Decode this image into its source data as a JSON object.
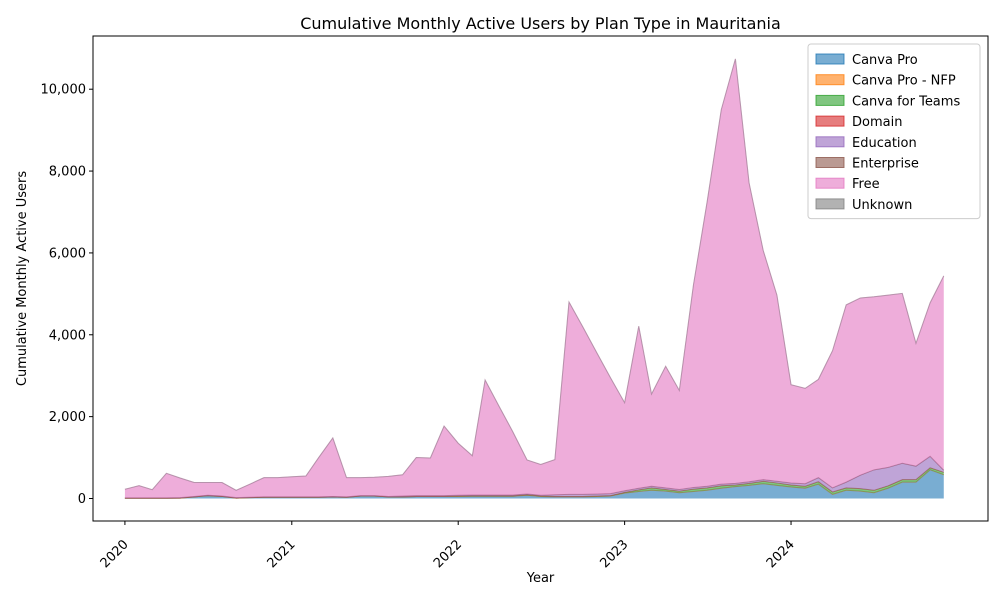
{
  "chart_data": {
    "type": "area",
    "title": "Cumulative Monthly Active Users by Plan Type in Mauritania",
    "xlabel": "Year",
    "ylabel": "Cumulative Monthly Active Users",
    "ylim": [
      -550,
      11300
    ],
    "xlim": [
      "2019-10-23",
      "2025-03-08"
    ],
    "x_ticks": [
      "2020",
      "2021",
      "2022",
      "2023",
      "2024"
    ],
    "y_ticks": [
      "0",
      "2,000",
      "4,000",
      "6,000",
      "8,000",
      "10,000"
    ],
    "legend_position": "top-right",
    "stacked": true,
    "x": [
      "2020-01",
      "2020-02",
      "2020-03",
      "2020-04",
      "2020-05",
      "2020-06",
      "2020-07",
      "2020-08",
      "2020-09",
      "2020-10",
      "2020-11",
      "2020-12",
      "2021-01",
      "2021-02",
      "2021-03",
      "2021-04",
      "2021-05",
      "2021-06",
      "2021-07",
      "2021-08",
      "2021-09",
      "2021-10",
      "2021-11",
      "2021-12",
      "2022-01",
      "2022-02",
      "2022-03",
      "2022-04",
      "2022-05",
      "2022-06",
      "2022-07",
      "2022-08",
      "2022-09",
      "2022-10",
      "2022-11",
      "2022-12",
      "2023-01",
      "2023-02",
      "2023-03",
      "2023-04",
      "2023-05",
      "2023-06",
      "2023-07",
      "2023-08",
      "2023-09",
      "2023-10",
      "2023-11",
      "2023-12",
      "2024-01",
      "2024-02",
      "2024-03",
      "2024-04",
      "2024-05",
      "2024-06",
      "2024-07",
      "2024-08",
      "2024-09",
      "2024-10",
      "2024-11",
      "2024-12"
    ],
    "series": [
      {
        "name": "Canva Pro",
        "color": "#1f77b4",
        "values": [
          5,
          5,
          5,
          5,
          10,
          40,
          70,
          50,
          10,
          20,
          30,
          30,
          30,
          30,
          30,
          40,
          30,
          60,
          60,
          40,
          40,
          50,
          50,
          50,
          50,
          55,
          55,
          55,
          55,
          80,
          50,
          40,
          40,
          40,
          50,
          60,
          130,
          170,
          200,
          180,
          140,
          170,
          200,
          250,
          290,
          320,
          360,
          320,
          280,
          250,
          350,
          100,
          200,
          180,
          140,
          250,
          400,
          400,
          700,
          580
        ]
      },
      {
        "name": "Canva Pro - NFP",
        "color": "#ff7f0e",
        "values": [
          0,
          0,
          0,
          0,
          0,
          0,
          0,
          0,
          0,
          0,
          0,
          0,
          0,
          0,
          0,
          0,
          0,
          0,
          0,
          0,
          0,
          0,
          0,
          0,
          0,
          0,
          0,
          0,
          0,
          0,
          0,
          0,
          0,
          0,
          0,
          0,
          0,
          0,
          0,
          0,
          0,
          0,
          0,
          0,
          0,
          0,
          0,
          0,
          0,
          0,
          0,
          0,
          0,
          0,
          0,
          0,
          0,
          0,
          0,
          0
        ]
      },
      {
        "name": "Canva for Teams",
        "color": "#2ca02c",
        "values": [
          0,
          0,
          0,
          0,
          0,
          0,
          0,
          0,
          0,
          0,
          0,
          0,
          0,
          0,
          0,
          0,
          0,
          0,
          0,
          0,
          0,
          0,
          0,
          0,
          10,
          10,
          10,
          10,
          10,
          10,
          10,
          10,
          10,
          10,
          10,
          10,
          20,
          40,
          60,
          40,
          40,
          60,
          60,
          60,
          40,
          50,
          60,
          60,
          50,
          50,
          60,
          60,
          60,
          60,
          60,
          60,
          60,
          60,
          50,
          60
        ]
      },
      {
        "name": "Domain",
        "color": "#d62728",
        "values": [
          0,
          0,
          0,
          0,
          0,
          0,
          0,
          0,
          0,
          0,
          0,
          0,
          0,
          0,
          0,
          0,
          0,
          0,
          0,
          0,
          0,
          0,
          0,
          0,
          0,
          0,
          0,
          0,
          0,
          0,
          0,
          0,
          0,
          0,
          0,
          0,
          0,
          0,
          0,
          0,
          0,
          0,
          0,
          0,
          0,
          0,
          0,
          0,
          0,
          0,
          0,
          0,
          0,
          0,
          0,
          0,
          0,
          0,
          0,
          0
        ]
      },
      {
        "name": "Education",
        "color": "#9467bd",
        "values": [
          10,
          10,
          10,
          10,
          10,
          10,
          10,
          10,
          10,
          10,
          10,
          10,
          10,
          10,
          10,
          10,
          10,
          10,
          10,
          10,
          20,
          20,
          20,
          20,
          20,
          20,
          20,
          20,
          20,
          20,
          20,
          40,
          50,
          50,
          50,
          50,
          40,
          40,
          40,
          40,
          40,
          40,
          40,
          40,
          40,
          40,
          40,
          40,
          50,
          60,
          100,
          100,
          140,
          330,
          500,
          450,
          400,
          330,
          280,
          50
        ]
      },
      {
        "name": "Enterprise",
        "color": "#8c564b",
        "values": [
          0,
          0,
          0,
          0,
          0,
          0,
          0,
          0,
          0,
          0,
          0,
          0,
          0,
          0,
          0,
          0,
          0,
          0,
          0,
          0,
          0,
          0,
          0,
          0,
          0,
          0,
          0,
          0,
          0,
          0,
          0,
          0,
          0,
          0,
          0,
          0,
          0,
          0,
          0,
          0,
          0,
          0,
          0,
          0,
          0,
          0,
          0,
          0,
          0,
          0,
          0,
          0,
          0,
          0,
          0,
          0,
          0,
          0,
          0,
          0
        ]
      },
      {
        "name": "Free",
        "color": "#e377c2",
        "values": [
          210,
          300,
          200,
          600,
          480,
          340,
          310,
          330,
          180,
          320,
          470,
          470,
          490,
          510,
          960,
          1430,
          470,
          440,
          450,
          490,
          520,
          930,
          920,
          1700,
          1270,
          960,
          2810,
          2160,
          1540,
          830,
          750,
          860,
          4700,
          4100,
          3450,
          2830,
          2150,
          3960,
          2250,
          2970,
          2420,
          4950,
          6950,
          9150,
          10370,
          7300,
          5600,
          4550,
          2400,
          2330,
          2400,
          3350,
          4330,
          4330,
          4230,
          4210,
          4150,
          3000,
          3750,
          4750
        ]
      },
      {
        "name": "Unknown",
        "color": "#7f7f7f",
        "values": [
          0,
          0,
          0,
          0,
          0,
          0,
          0,
          0,
          0,
          0,
          0,
          0,
          0,
          0,
          0,
          0,
          0,
          0,
          0,
          0,
          0,
          0,
          0,
          0,
          0,
          0,
          0,
          0,
          0,
          0,
          0,
          0,
          0,
          0,
          0,
          0,
          0,
          0,
          0,
          0,
          0,
          0,
          0,
          0,
          0,
          0,
          0,
          0,
          0,
          0,
          0,
          0,
          0,
          0,
          0,
          0,
          0,
          0,
          0,
          0
        ]
      }
    ]
  }
}
